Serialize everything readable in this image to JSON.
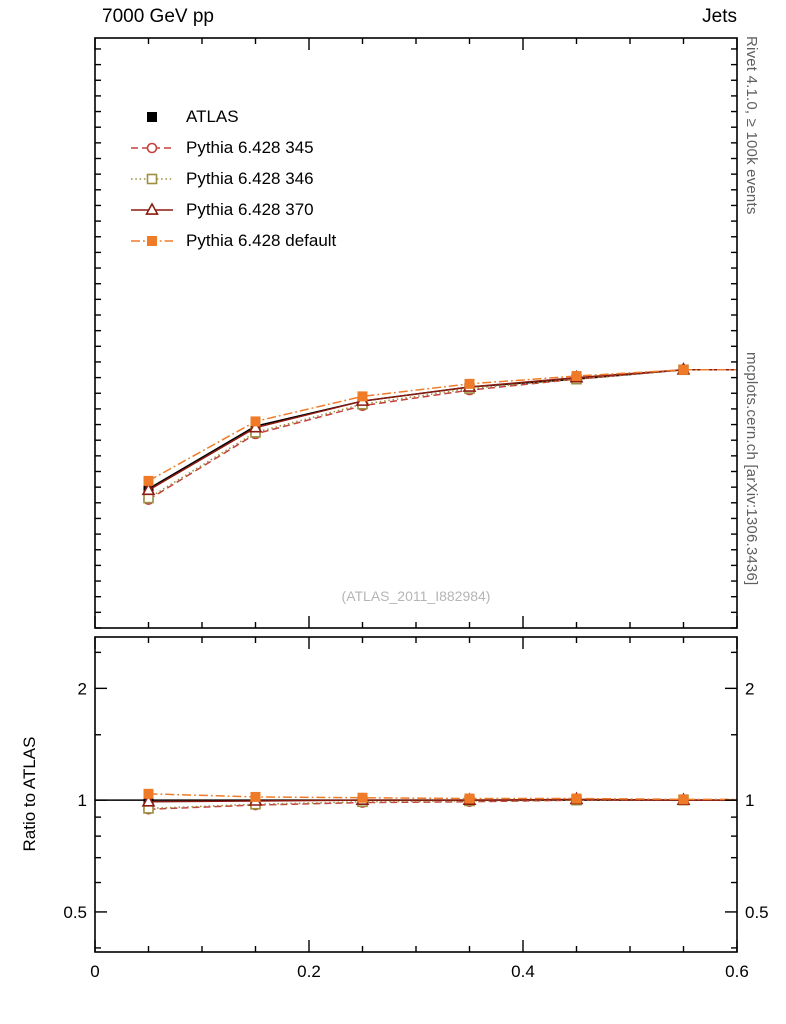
{
  "header": {
    "title_left": "7000 GeV pp",
    "title_right": "Jets"
  },
  "side_notes": {
    "top_right": "Rivet 4.1.0, ≥ 100k events",
    "bottom_right": "mcplots.cern.ch [arXiv:1306.3436]"
  },
  "watermark": "(ATLAS_2011_I882984)",
  "colors": {
    "frame": "#000000",
    "side_note": "#606060",
    "watermark": "#b5b5b5"
  },
  "chart_data": {
    "type": "line",
    "title": "",
    "xlabel": "",
    "ylabel": "",
    "ratio_ylabel": "Ratio to ATLAS",
    "x": [
      0.05,
      0.15,
      0.25,
      0.35,
      0.45,
      0.55
    ],
    "series": [
      {
        "name": "ATLAS",
        "color": "#000000",
        "line": "solid",
        "marker": "filled_square",
        "values": [
          0.62,
          0.82,
          0.9,
          0.945,
          0.97,
          1.0
        ],
        "ratio": [
          1,
          1,
          1,
          1,
          1,
          1
        ]
      },
      {
        "name": "Pythia 6.428 345",
        "color": "#c5403e",
        "line": "dashed",
        "marker": "open_circle",
        "values": [
          0.585,
          0.795,
          0.885,
          0.935,
          0.97,
          1.0
        ],
        "ratio": [
          0.945,
          0.97,
          0.985,
          0.99,
          1.0,
          1.0
        ]
      },
      {
        "name": "Pythia 6.428 346",
        "color": "#9c8f3f",
        "line": "dotted",
        "marker": "open_square",
        "values": [
          0.59,
          0.8,
          0.89,
          0.94,
          0.97,
          1.0
        ],
        "ratio": [
          0.95,
          0.975,
          0.99,
          0.995,
          1.0,
          1.0
        ]
      },
      {
        "name": "Pythia 6.428 370",
        "color": "#8b1a10",
        "line": "solid",
        "marker": "open_triangle",
        "values": [
          0.615,
          0.815,
          0.9,
          0.945,
          0.975,
          1.0
        ],
        "ratio": [
          0.99,
          0.995,
          1.0,
          1.0,
          1.005,
          1.0
        ]
      },
      {
        "name": "Pythia 6.428 default",
        "color": "#ef7b28",
        "line": "dashdot",
        "marker": "filled_square",
        "values": [
          0.645,
          0.835,
          0.915,
          0.955,
          0.98,
          1.0
        ],
        "ratio": [
          1.04,
          1.02,
          1.015,
          1.01,
          1.01,
          1.005
        ]
      }
    ],
    "xlim": [
      0,
      0.6
    ],
    "main_ylim": [
      0.175,
      2.06
    ],
    "main_yscale": "linear",
    "ratio_ylim": [
      0.39,
      2.75
    ],
    "ratio_yscale": "log",
    "xticks": [
      0,
      0.2,
      0.4,
      0.6
    ],
    "xtick_minor_step": 0.05,
    "main_yticks": [
      0.2,
      0.4,
      0.6,
      0.8,
      1,
      1.2,
      1.4,
      1.6,
      1.8,
      2
    ],
    "main_ytick_minor_step": 0.05,
    "ratio_yticks": [
      0.5,
      1,
      2
    ],
    "ratio_ytick_minor": [
      0.4,
      0.6,
      0.7,
      0.8,
      0.9,
      1.5,
      2.5
    ],
    "point_error": 0.012,
    "legend_position": "top-left",
    "grid": false
  }
}
